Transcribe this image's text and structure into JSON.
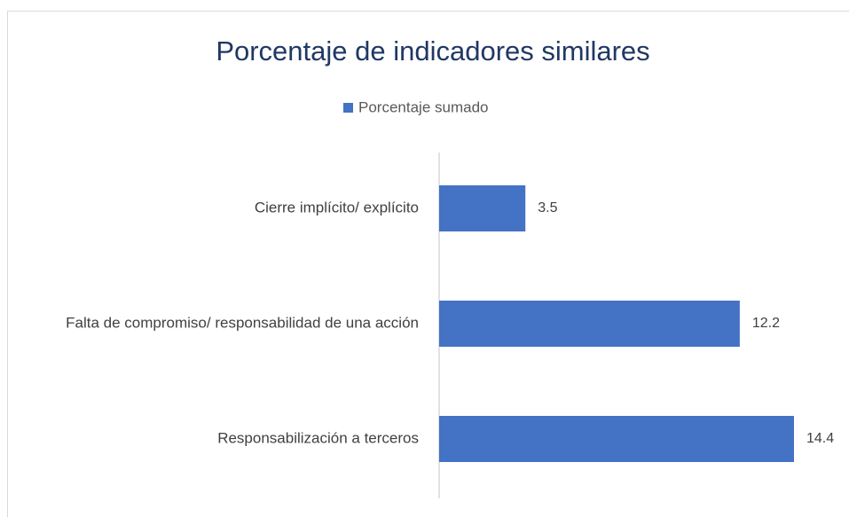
{
  "chart_data": {
    "type": "barh",
    "title": "Porcentaje de indicadores similares",
    "categories": [
      "Cierre implícito/ explícito",
      "Falta de compromiso/ responsabilidad de una acción",
      "Responsabilización a terceros"
    ],
    "series": [
      {
        "name": "Porcentaje sumado",
        "color": "#4472c4",
        "values": [
          3.5,
          12.2,
          14.4
        ]
      }
    ],
    "legend": "top"
  }
}
